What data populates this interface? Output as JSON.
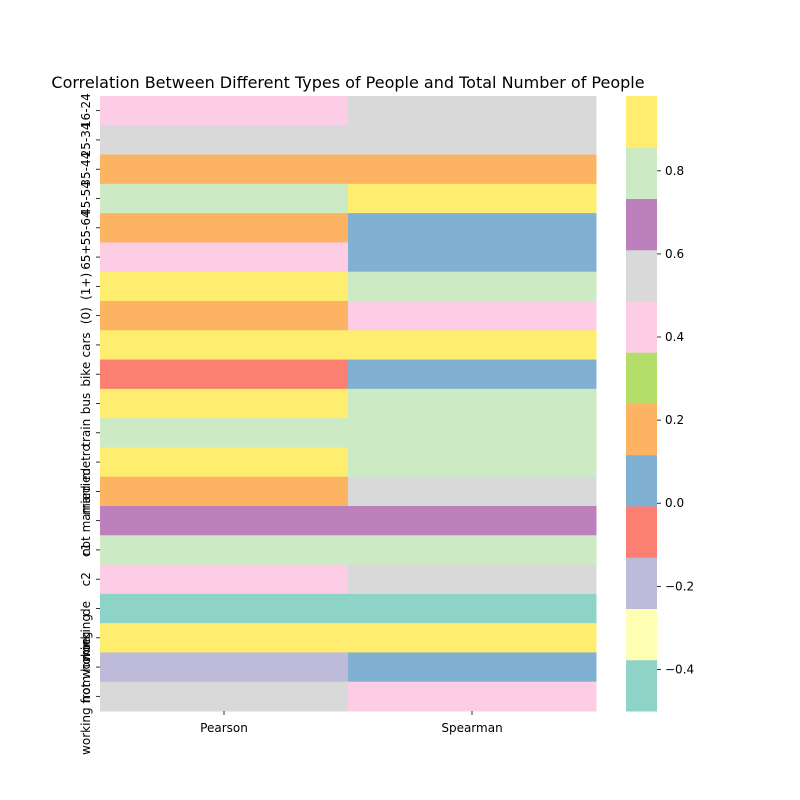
{
  "chart_data": {
    "type": "heatmap",
    "title": "Correlation Between Different Types of People and Total Number of People",
    "xlabel": "",
    "ylabel": "",
    "columns": [
      "Pearson",
      "Spearman"
    ],
    "rows": [
      "16-24",
      "25-34",
      "35-44",
      "45-54",
      "55-64",
      "65+",
      "(1+)",
      "(0)",
      "cars",
      "bike",
      "bus",
      "train",
      "metro",
      "married",
      "not married",
      "c1",
      "c2",
      "de",
      "working",
      "not working",
      "working from home"
    ],
    "values": [
      [
        0.4,
        0.6
      ],
      [
        0.6,
        0.5
      ],
      [
        0.2,
        0.2
      ],
      [
        0.8,
        1.0
      ],
      [
        0.2,
        0.0
      ],
      [
        0.4,
        0.0
      ],
      [
        1.0,
        0.8
      ],
      [
        0.2,
        0.4
      ],
      [
        1.0,
        1.0
      ],
      [
        -0.1,
        0.0
      ],
      [
        1.0,
        0.8
      ],
      [
        0.8,
        0.8
      ],
      [
        1.0,
        0.8
      ],
      [
        0.2,
        0.5
      ],
      [
        0.7,
        0.7
      ],
      [
        0.8,
        0.8
      ],
      [
        0.4,
        0.6
      ],
      [
        -0.5,
        -0.5
      ],
      [
        1.0,
        1.0
      ],
      [
        -0.2,
        0.0
      ],
      [
        0.6,
        0.4
      ]
    ],
    "colormap": [
      "#8dd3c7",
      "#ffffb3",
      "#bebada",
      "#fb8072",
      "#80b1d3",
      "#fdb462",
      "#b3de69",
      "#fccde5",
      "#d9d9d9",
      "#bc80bd",
      "#ccebc5",
      "#ffed6f"
    ],
    "vmin": -0.5,
    "vmax": 0.98,
    "colorbar_ticks": [
      -0.4,
      -0.2,
      0.0,
      0.2,
      0.4,
      0.6,
      0.8
    ],
    "colorbar_tick_labels": [
      "−0.4",
      "−0.2",
      "0.0",
      "0.2",
      "0.4",
      "0.6",
      "0.8"
    ]
  }
}
